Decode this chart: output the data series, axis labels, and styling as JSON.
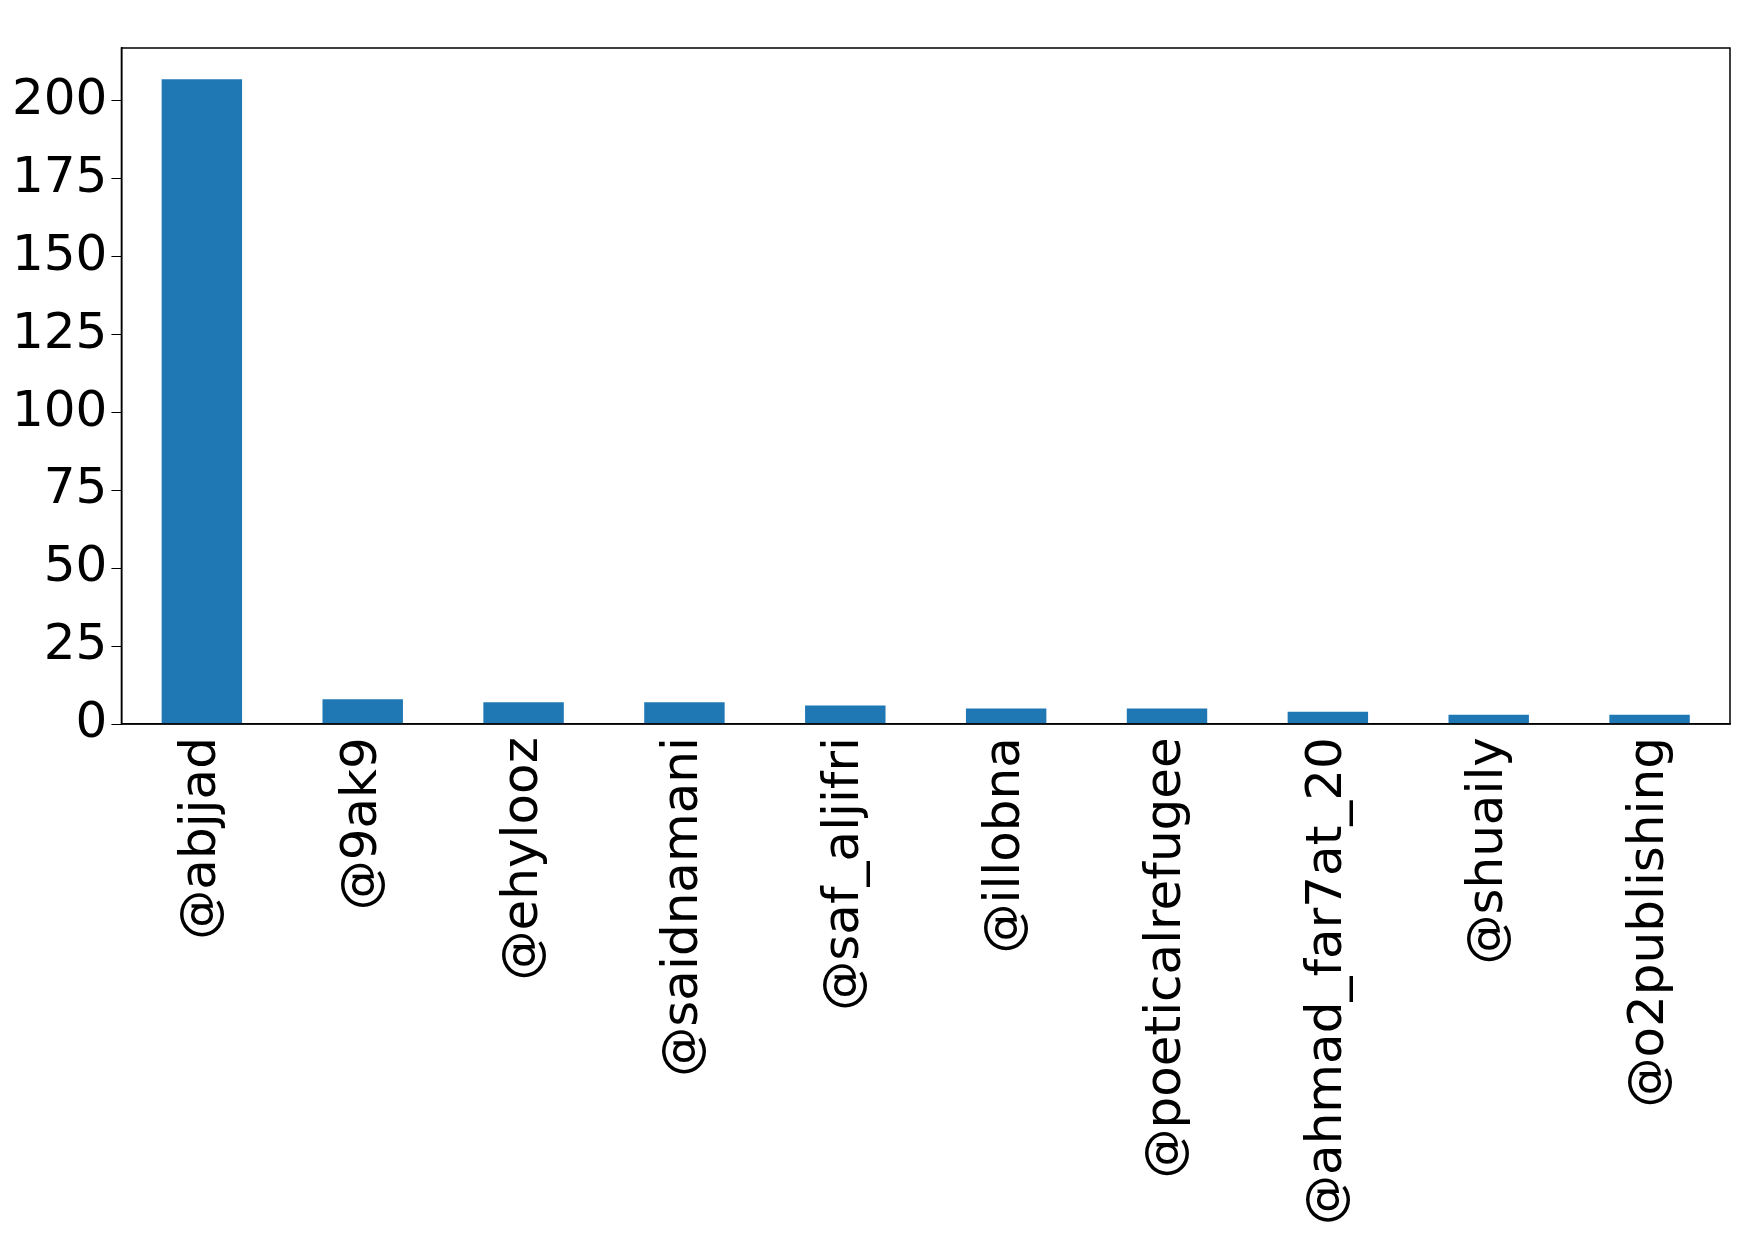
{
  "chart_data": {
    "type": "bar",
    "categories": [
      "@abjjad",
      "@9ak9",
      "@ehylooz",
      "@saidnamani",
      "@saf_aljifri",
      "@illobna",
      "@poeticalrefugee",
      "@ahmad_far7at_20",
      "@shuaily",
      "@o2publishing"
    ],
    "values": [
      207,
      8,
      7,
      7,
      6,
      5,
      5,
      4,
      3,
      3
    ],
    "color": "#1f77b4",
    "ylim": [
      0,
      217
    ],
    "yticks": [
      0,
      25,
      50,
      75,
      100,
      125,
      150,
      175,
      200
    ],
    "grid": false,
    "legend": false
  }
}
